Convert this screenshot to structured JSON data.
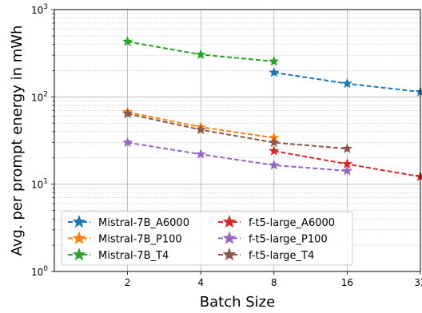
{
  "chart_data": {
    "type": "line",
    "title": "",
    "xlabel": "Batch Size",
    "ylabel": "Avg. per prompt energy in mWh",
    "x_scale": "log2",
    "y_scale": "log10",
    "xlim": [
      1,
      32
    ],
    "ylim": [
      1,
      1000
    ],
    "x_ticks": [
      {
        "value": 2,
        "label": "2"
      },
      {
        "value": 4,
        "label": "4"
      },
      {
        "value": 8,
        "label": "8"
      },
      {
        "value": 16,
        "label": "16"
      },
      {
        "value": 32,
        "label": "32"
      }
    ],
    "y_ticks": [
      {
        "value": 1,
        "base": "10",
        "exp": "0"
      },
      {
        "value": 10,
        "base": "10",
        "exp": "1"
      },
      {
        "value": 100,
        "base": "10",
        "exp": "2"
      },
      {
        "value": 1000,
        "base": "10",
        "exp": "3"
      }
    ],
    "grid": true,
    "legend_position": "bottom-left",
    "series": [
      {
        "name": "Mistral-7B_A6000",
        "color": "#1f77b4",
        "x": [
          8,
          16,
          32
        ],
        "y": [
          190,
          142,
          114
        ]
      },
      {
        "name": "Mistral-7B_P100",
        "color": "#ff7f0e",
        "x": [
          2,
          4,
          8
        ],
        "y": [
          67,
          45,
          34
        ]
      },
      {
        "name": "Mistral-7B_T4",
        "color": "#2ca02c",
        "x": [
          2,
          4,
          8
        ],
        "y": [
          430,
          305,
          255
        ]
      },
      {
        "name": "f-t5-large_A6000",
        "color": "#d62728",
        "x": [
          8,
          16,
          32
        ],
        "y": [
          24,
          17,
          12.2
        ]
      },
      {
        "name": "f-t5-large_P100",
        "color": "#9467bd",
        "x": [
          2,
          4,
          8,
          16
        ],
        "y": [
          30,
          22,
          16.5,
          14.2
        ]
      },
      {
        "name": "f-t5-large_T4",
        "color": "#8c564b",
        "x": [
          2,
          4,
          8,
          16
        ],
        "y": [
          64,
          42,
          30,
          25.5
        ]
      }
    ]
  }
}
